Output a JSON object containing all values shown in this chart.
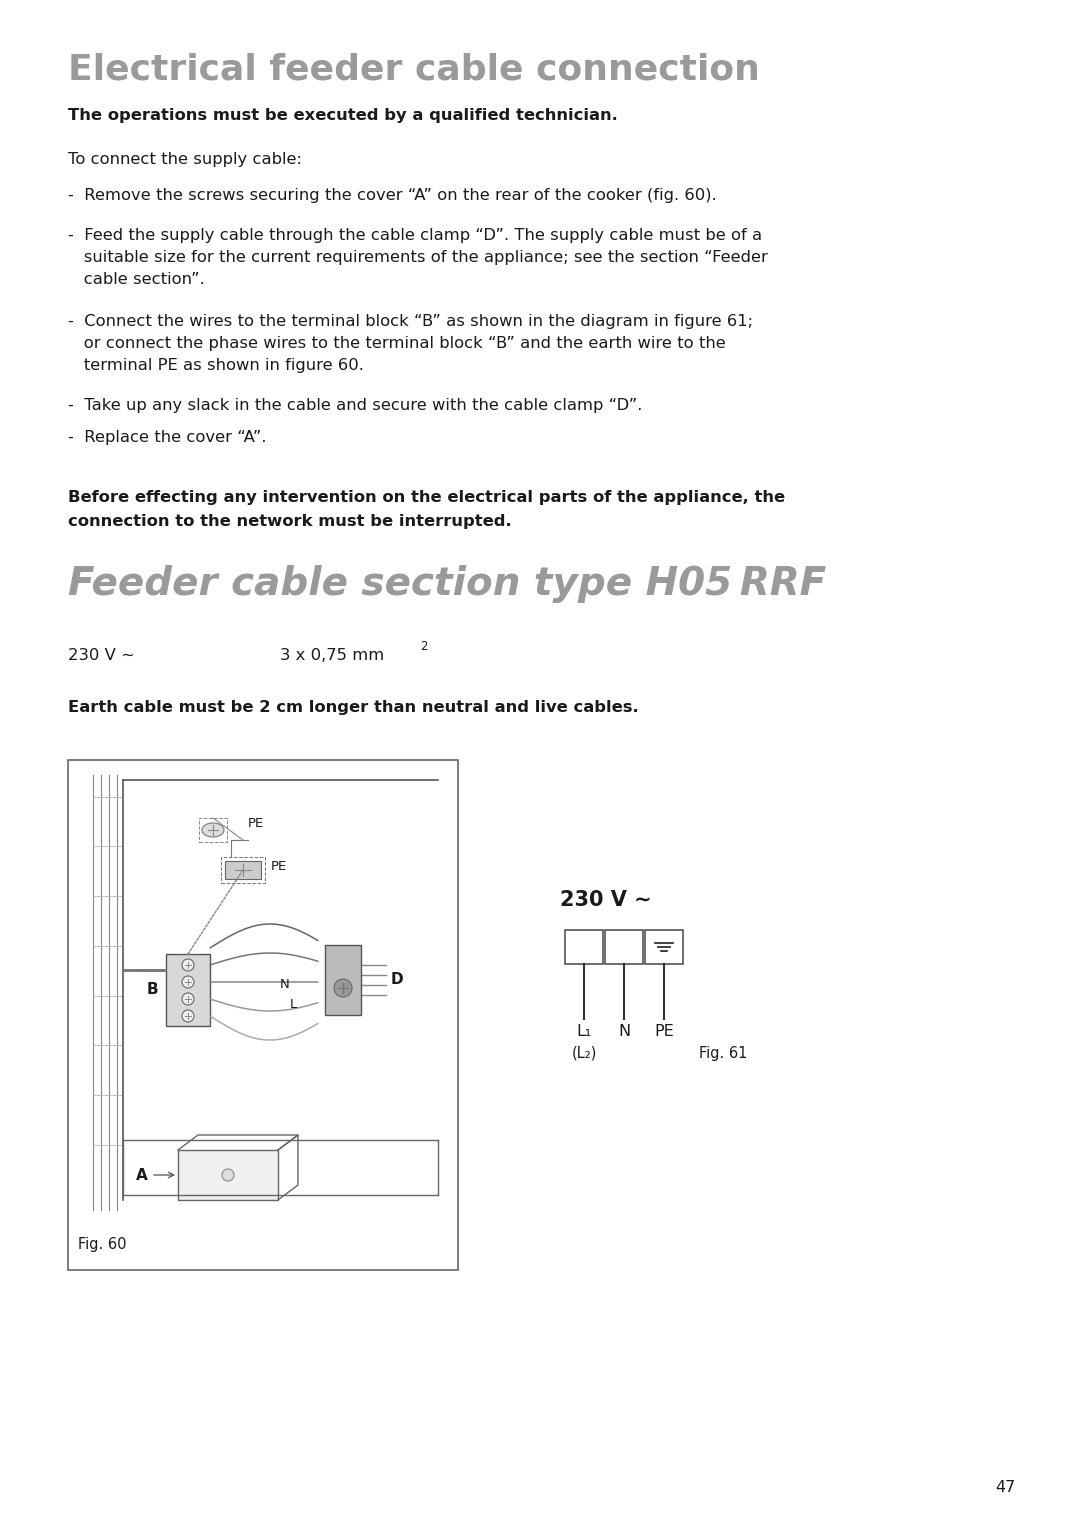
{
  "title1": "Electrical feeder cable connection",
  "title2": "Feeder cable section type H05 RRF",
  "title1_color": "#9a9a9a",
  "title2_color": "#9a9a9a",
  "bold_line1": "The operations must be executed by a qualified technician.",
  "para_intro": "To connect the supply cable:",
  "b1": "-  Remove the screws securing the cover “A” on the rear of the cooker (fig. 60).",
  "b2_1": "-  Feed the supply cable through the cable clamp “D”. The supply cable must be of a",
  "b2_2": "   suitable size for the current requirements of the appliance; see the section “Feeder",
  "b2_3": "   cable section”.",
  "b3_1": "-  Connect the wires to the terminal block “B” as shown in the diagram in figure 61;",
  "b3_2": "   or connect the phase wires to the terminal block “B” and the earth wire to the",
  "b3_3": "   terminal PE as shown in figure 60.",
  "b4": "-  Take up any slack in the cable and secure with the cable clamp “D”.",
  "b5": "-  Replace the cover “A”.",
  "warn1": "Before effecting any intervention on the electrical parts of the appliance, the",
  "warn2": "connection to the network must be interrupted.",
  "spec_v": "230 V ∼",
  "spec_mm": "3 x 0,75 mm",
  "spec_sup": "2",
  "earth_note": "Earth cable must be 2 cm longer than neutral and live cables.",
  "fig60_label": "Fig. 60",
  "fig61_label": "Fig. 61",
  "d61_v": "230 V ∼",
  "d61_L1": "L₁",
  "d61_N": "N",
  "d61_PE": "PE",
  "d61_L2": "(L₂)",
  "page_number": "47",
  "bg_color": "#ffffff",
  "tc": "#1a1a1a"
}
